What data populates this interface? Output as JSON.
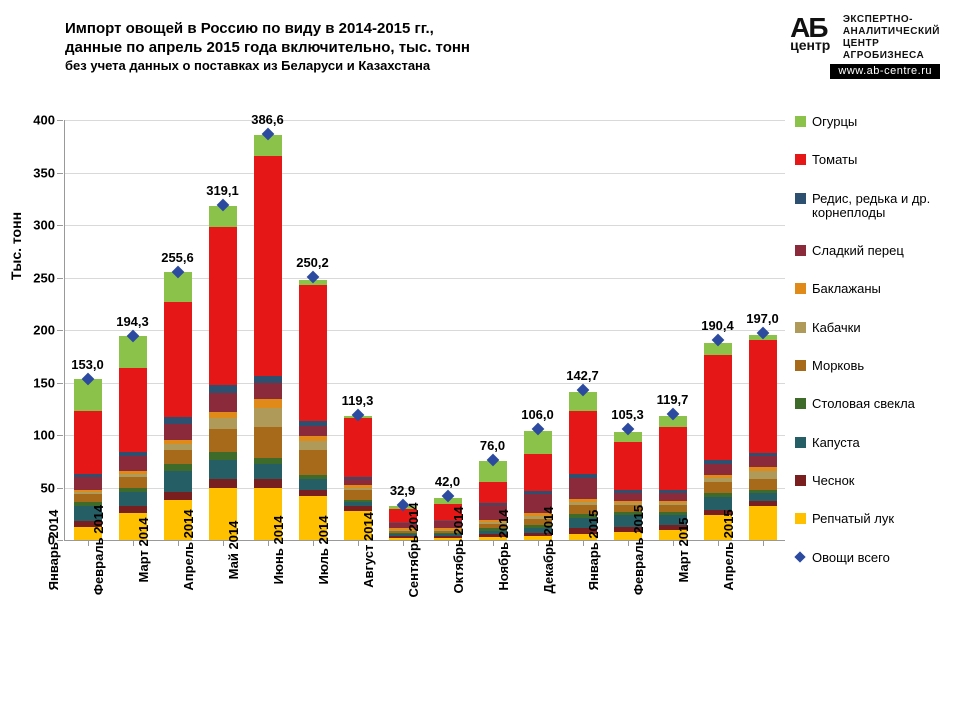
{
  "title_line1": "Импорт овощей в Россию по виду в 2014-2015 гг.,",
  "title_line2": "данные по апрель 2015 года включительно, тыс. тонн",
  "subtitle": "без учета данных о поставках из Беларуси и Казахстана",
  "logo": {
    "letters": "АБ",
    "center": "центр",
    "tag1": "ЭКСПЕРТНО-",
    "tag2": "АНАЛИТИЧЕСКИЙ",
    "tag3": "ЦЕНТР",
    "tag4": "АГРОБИЗНЕСА",
    "url": "www.ab-centre.ru"
  },
  "chart": {
    "type": "stacked-bar-with-marker",
    "ylabel": "Тыс. тонн",
    "ylim": [
      0,
      400
    ],
    "ytick_step": 50,
    "grid_color": "#d9d9d9",
    "marker_color": "#2c4aa0",
    "marker_label": "Овощи всего",
    "label_fontsize": 13,
    "categories": [
      "Январь 2014",
      "Февраль 2014",
      "Март 2014",
      "Апрель 2014",
      "Май 2014",
      "Июнь 2014",
      "Июль 2014",
      "Август 2014",
      "Сентябрь 2014",
      "Октябрь 2014",
      "Ноябрь 2014",
      "Декабрь 2014",
      "Январь 2015",
      "Февраль 2015",
      "Март 2015",
      "Апрель 2015"
    ],
    "totals": [
      153.0,
      194.3,
      255.6,
      319.1,
      386.6,
      250.2,
      119.3,
      32.9,
      42.0,
      76.0,
      106.0,
      142.7,
      105.3,
      119.7,
      190.4,
      197.0
    ],
    "total_labels": [
      "153,0",
      "194,3",
      "255,6",
      "319,1",
      "386,6",
      "250,2",
      "119,3",
      "32,9",
      "42,0",
      "76,0",
      "106,0",
      "142,7",
      "105,3",
      "119,7",
      "190,4",
      "197,0"
    ],
    "series": [
      {
        "name": "Репчатый лук",
        "color": "#ffc000",
        "values": [
          12,
          26,
          38,
          50,
          50,
          42,
          28,
          2,
          2,
          3,
          4,
          6,
          8,
          10,
          24,
          32
        ]
      },
      {
        "name": "Чеснок",
        "color": "#7a1f1f",
        "values": [
          6,
          6,
          8,
          8,
          8,
          6,
          4,
          2,
          2,
          3,
          3,
          5,
          4,
          4,
          5,
          5
        ]
      },
      {
        "name": "Капуста",
        "color": "#265e66",
        "values": [
          14,
          14,
          20,
          18,
          14,
          10,
          4,
          2,
          2,
          3,
          4,
          10,
          12,
          10,
          12,
          8
        ]
      },
      {
        "name": "Столовая свекла",
        "color": "#3f6b2a",
        "values": [
          4,
          4,
          6,
          8,
          6,
          4,
          2,
          1,
          1,
          2,
          3,
          4,
          3,
          3,
          4,
          3
        ]
      },
      {
        "name": "Морковь",
        "color": "#a76a1a",
        "values": [
          8,
          10,
          14,
          22,
          30,
          24,
          10,
          2,
          2,
          4,
          6,
          8,
          6,
          6,
          10,
          10
        ]
      },
      {
        "name": "Кабачки",
        "color": "#b09a5a",
        "values": [
          2,
          3,
          5,
          10,
          18,
          8,
          2,
          1,
          1,
          2,
          3,
          3,
          2,
          2,
          4,
          8
        ]
      },
      {
        "name": "Баклажаны",
        "color": "#e08a1a",
        "values": [
          2,
          3,
          4,
          6,
          8,
          5,
          2,
          1,
          1,
          2,
          3,
          3,
          2,
          2,
          3,
          4
        ]
      },
      {
        "name": "Сладкий перец",
        "color": "#8a2a3a",
        "values": [
          12,
          14,
          16,
          18,
          16,
          10,
          6,
          4,
          6,
          14,
          18,
          20,
          8,
          8,
          10,
          10
        ]
      },
      {
        "name": "Редис, редька и др. корнеплоды",
        "color": "#2d5070",
        "values": [
          3,
          4,
          6,
          8,
          6,
          4,
          2,
          1,
          1,
          2,
          3,
          4,
          3,
          3,
          4,
          3
        ]
      },
      {
        "name": "Томаты",
        "color": "#e61717",
        "values": [
          60,
          80,
          110,
          150,
          210,
          130,
          56,
          14,
          16,
          20,
          35,
          60,
          45,
          60,
          100,
          108
        ]
      },
      {
        "name": "Огурцы",
        "color": "#8bc34a",
        "values": [
          30,
          30,
          28,
          20,
          20,
          5,
          2,
          2,
          6,
          20,
          22,
          18,
          10,
          10,
          12,
          4
        ]
      }
    ]
  }
}
